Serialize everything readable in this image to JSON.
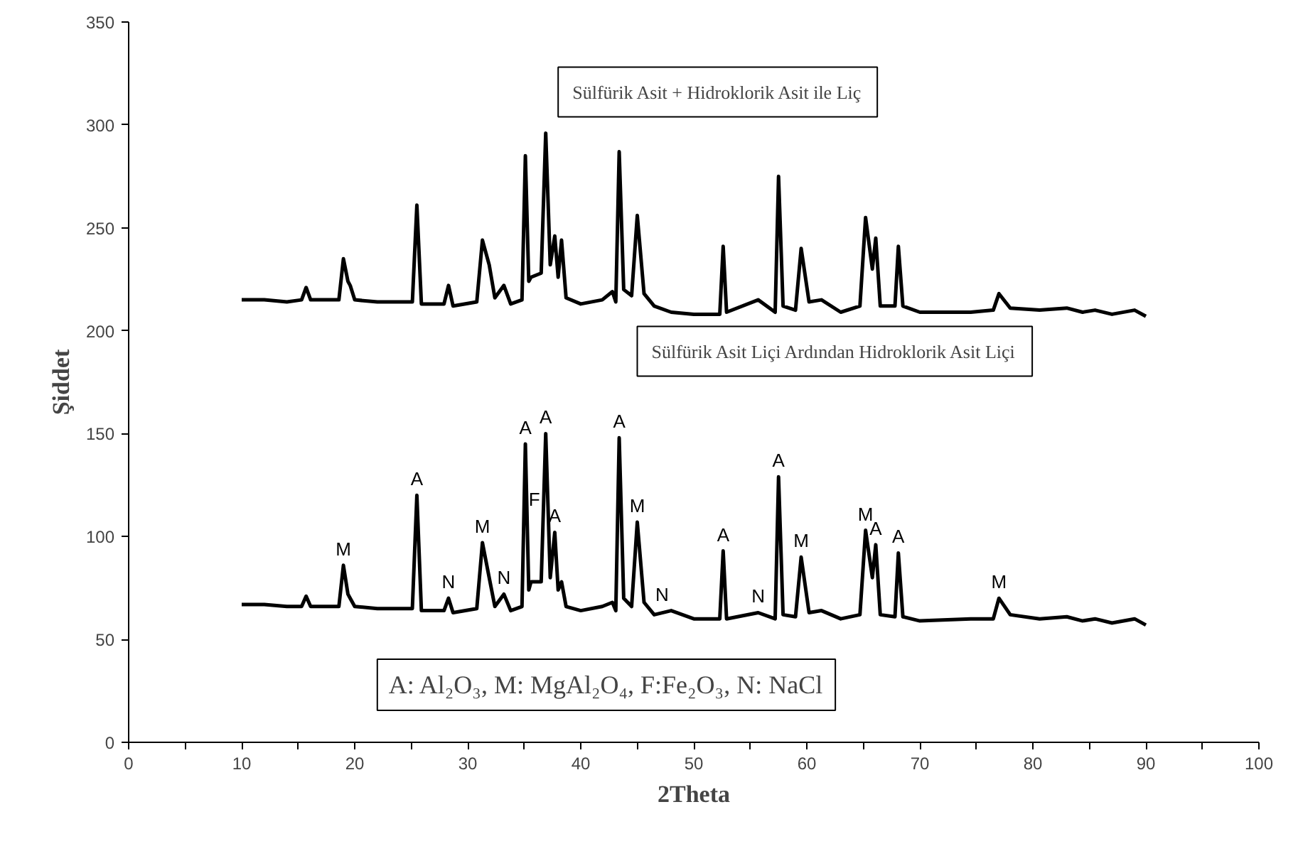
{
  "chart_data": {
    "type": "line",
    "xlabel": "2Theta",
    "ylabel": "Şiddet",
    "x": [
      10,
      12,
      14,
      15.3,
      15.7,
      16.1,
      18.6,
      19,
      19.4,
      19.6,
      20,
      22,
      25.1,
      25.5,
      25.9,
      27.9,
      28.3,
      28.7,
      30.8,
      31.3,
      31.9,
      32.4,
      33.2,
      33.8,
      34.8,
      35.1,
      35.4,
      35.6,
      36.5,
      36.9,
      37.3,
      37.7,
      38.0,
      38.3,
      38.7,
      40,
      41.9,
      42.8,
      43.1,
      43.4,
      43.8,
      44.5,
      45,
      45.6,
      46.5,
      48,
      50,
      52.3,
      52.6,
      52.9,
      55.7,
      57.2,
      57.5,
      57.9,
      59,
      59.5,
      60.2,
      61.3,
      63,
      64.7,
      65.2,
      65.8,
      66.1,
      66.5,
      67.8,
      68.1,
      68.5,
      70,
      74.5,
      76.5,
      77,
      78,
      80.6,
      83,
      84.4,
      85.5,
      87,
      89,
      90
    ],
    "series": [
      {
        "name": "Sülfürik Asit + Hidroklorik Asit ile Liç",
        "color": "#000000",
        "values": [
          215,
          215,
          214,
          215,
          221,
          215,
          215,
          235,
          224,
          222,
          215,
          214,
          214,
          261,
          213,
          213,
          222,
          212,
          214,
          244,
          232,
          216,
          222,
          213,
          215,
          285,
          224,
          226,
          228,
          296,
          232,
          246,
          226,
          244,
          216,
          213,
          215,
          219,
          214,
          287,
          220,
          217,
          256,
          218,
          212,
          209,
          208,
          208,
          241,
          209,
          215,
          209,
          275,
          212,
          210,
          240,
          214,
          215,
          209,
          212,
          255,
          230,
          245,
          212,
          212,
          241,
          212,
          209,
          209,
          210,
          218,
          211,
          210,
          211,
          209,
          210,
          208,
          210,
          207
        ]
      },
      {
        "name": "Sülfürik Asit Liçi Ardından Hidroklorik Asit Liçi",
        "color": "#000000",
        "values": [
          67,
          67,
          66,
          66,
          71,
          66,
          66,
          86,
          72,
          70,
          66,
          65,
          65,
          120,
          64,
          64,
          70,
          63,
          65,
          97,
          80,
          66,
          72,
          64,
          66,
          145,
          74,
          78,
          78,
          150,
          80,
          102,
          74,
          78,
          66,
          64,
          66,
          68,
          64,
          148,
          70,
          66,
          107,
          68,
          62,
          64,
          60,
          60,
          93,
          60,
          63,
          60,
          129,
          62,
          61,
          90,
          63,
          64,
          60,
          62,
          103,
          80,
          96,
          62,
          61,
          92,
          61,
          59,
          60,
          60,
          70,
          62,
          60,
          61,
          59,
          60,
          58,
          60,
          57
        ]
      }
    ],
    "xlim": [
      0,
      100
    ],
    "ylim": [
      0,
      350
    ],
    "xticks": [
      0,
      {
        "value": 5,
        "label": null
      },
      10,
      {
        "value": 15,
        "label": null
      },
      20,
      {
        "value": 25,
        "label": null
      },
      30,
      {
        "value": 35,
        "label": null
      },
      40,
      {
        "value": 45,
        "label": null
      },
      50,
      {
        "value": 55,
        "label": null
      },
      60,
      {
        "value": 65,
        "label": null
      },
      70,
      {
        "value": 75,
        "label": null
      },
      80,
      {
        "value": 85,
        "label": null
      },
      90,
      {
        "value": 95,
        "label": null
      },
      100
    ],
    "yticks": [
      0,
      50,
      100,
      150,
      200,
      250,
      300,
      350
    ],
    "grid": false,
    "legend": false,
    "marker": "none",
    "line_style": "solid",
    "annotations": [
      {
        "text": "M",
        "x": 19,
        "y": 86
      },
      {
        "text": "A",
        "x": 25.5,
        "y": 120
      },
      {
        "text": "N",
        "x": 28.3,
        "y": 70
      },
      {
        "text": "M",
        "x": 31.3,
        "y": 97
      },
      {
        "text": "N",
        "x": 33.2,
        "y": 72
      },
      {
        "text": "A",
        "x": 35.1,
        "y": 145
      },
      {
        "text": "F",
        "x": 35.9,
        "y": 110
      },
      {
        "text": "A",
        "x": 36.9,
        "y": 150
      },
      {
        "text": "A",
        "x": 37.7,
        "y": 102
      },
      {
        "text": "A",
        "x": 43.4,
        "y": 148
      },
      {
        "text": "M",
        "x": 45,
        "y": 107
      },
      {
        "text": "N",
        "x": 47.2,
        "y": 64
      },
      {
        "text": "A",
        "x": 52.6,
        "y": 93
      },
      {
        "text": "N",
        "x": 55.7,
        "y": 63
      },
      {
        "text": "A",
        "x": 57.5,
        "y": 129
      },
      {
        "text": "M",
        "x": 59.5,
        "y": 90
      },
      {
        "text": "M",
        "x": 65.2,
        "y": 103
      },
      {
        "text": "A",
        "x": 66.1,
        "y": 96
      },
      {
        "text": "A",
        "x": 68.1,
        "y": 92
      },
      {
        "text": "M",
        "x": 77,
        "y": 70
      },
      "A: Al₂O₃, M: MgAl₂O₄, F:Fe₂O₃, N: NaCl"
    ]
  }
}
